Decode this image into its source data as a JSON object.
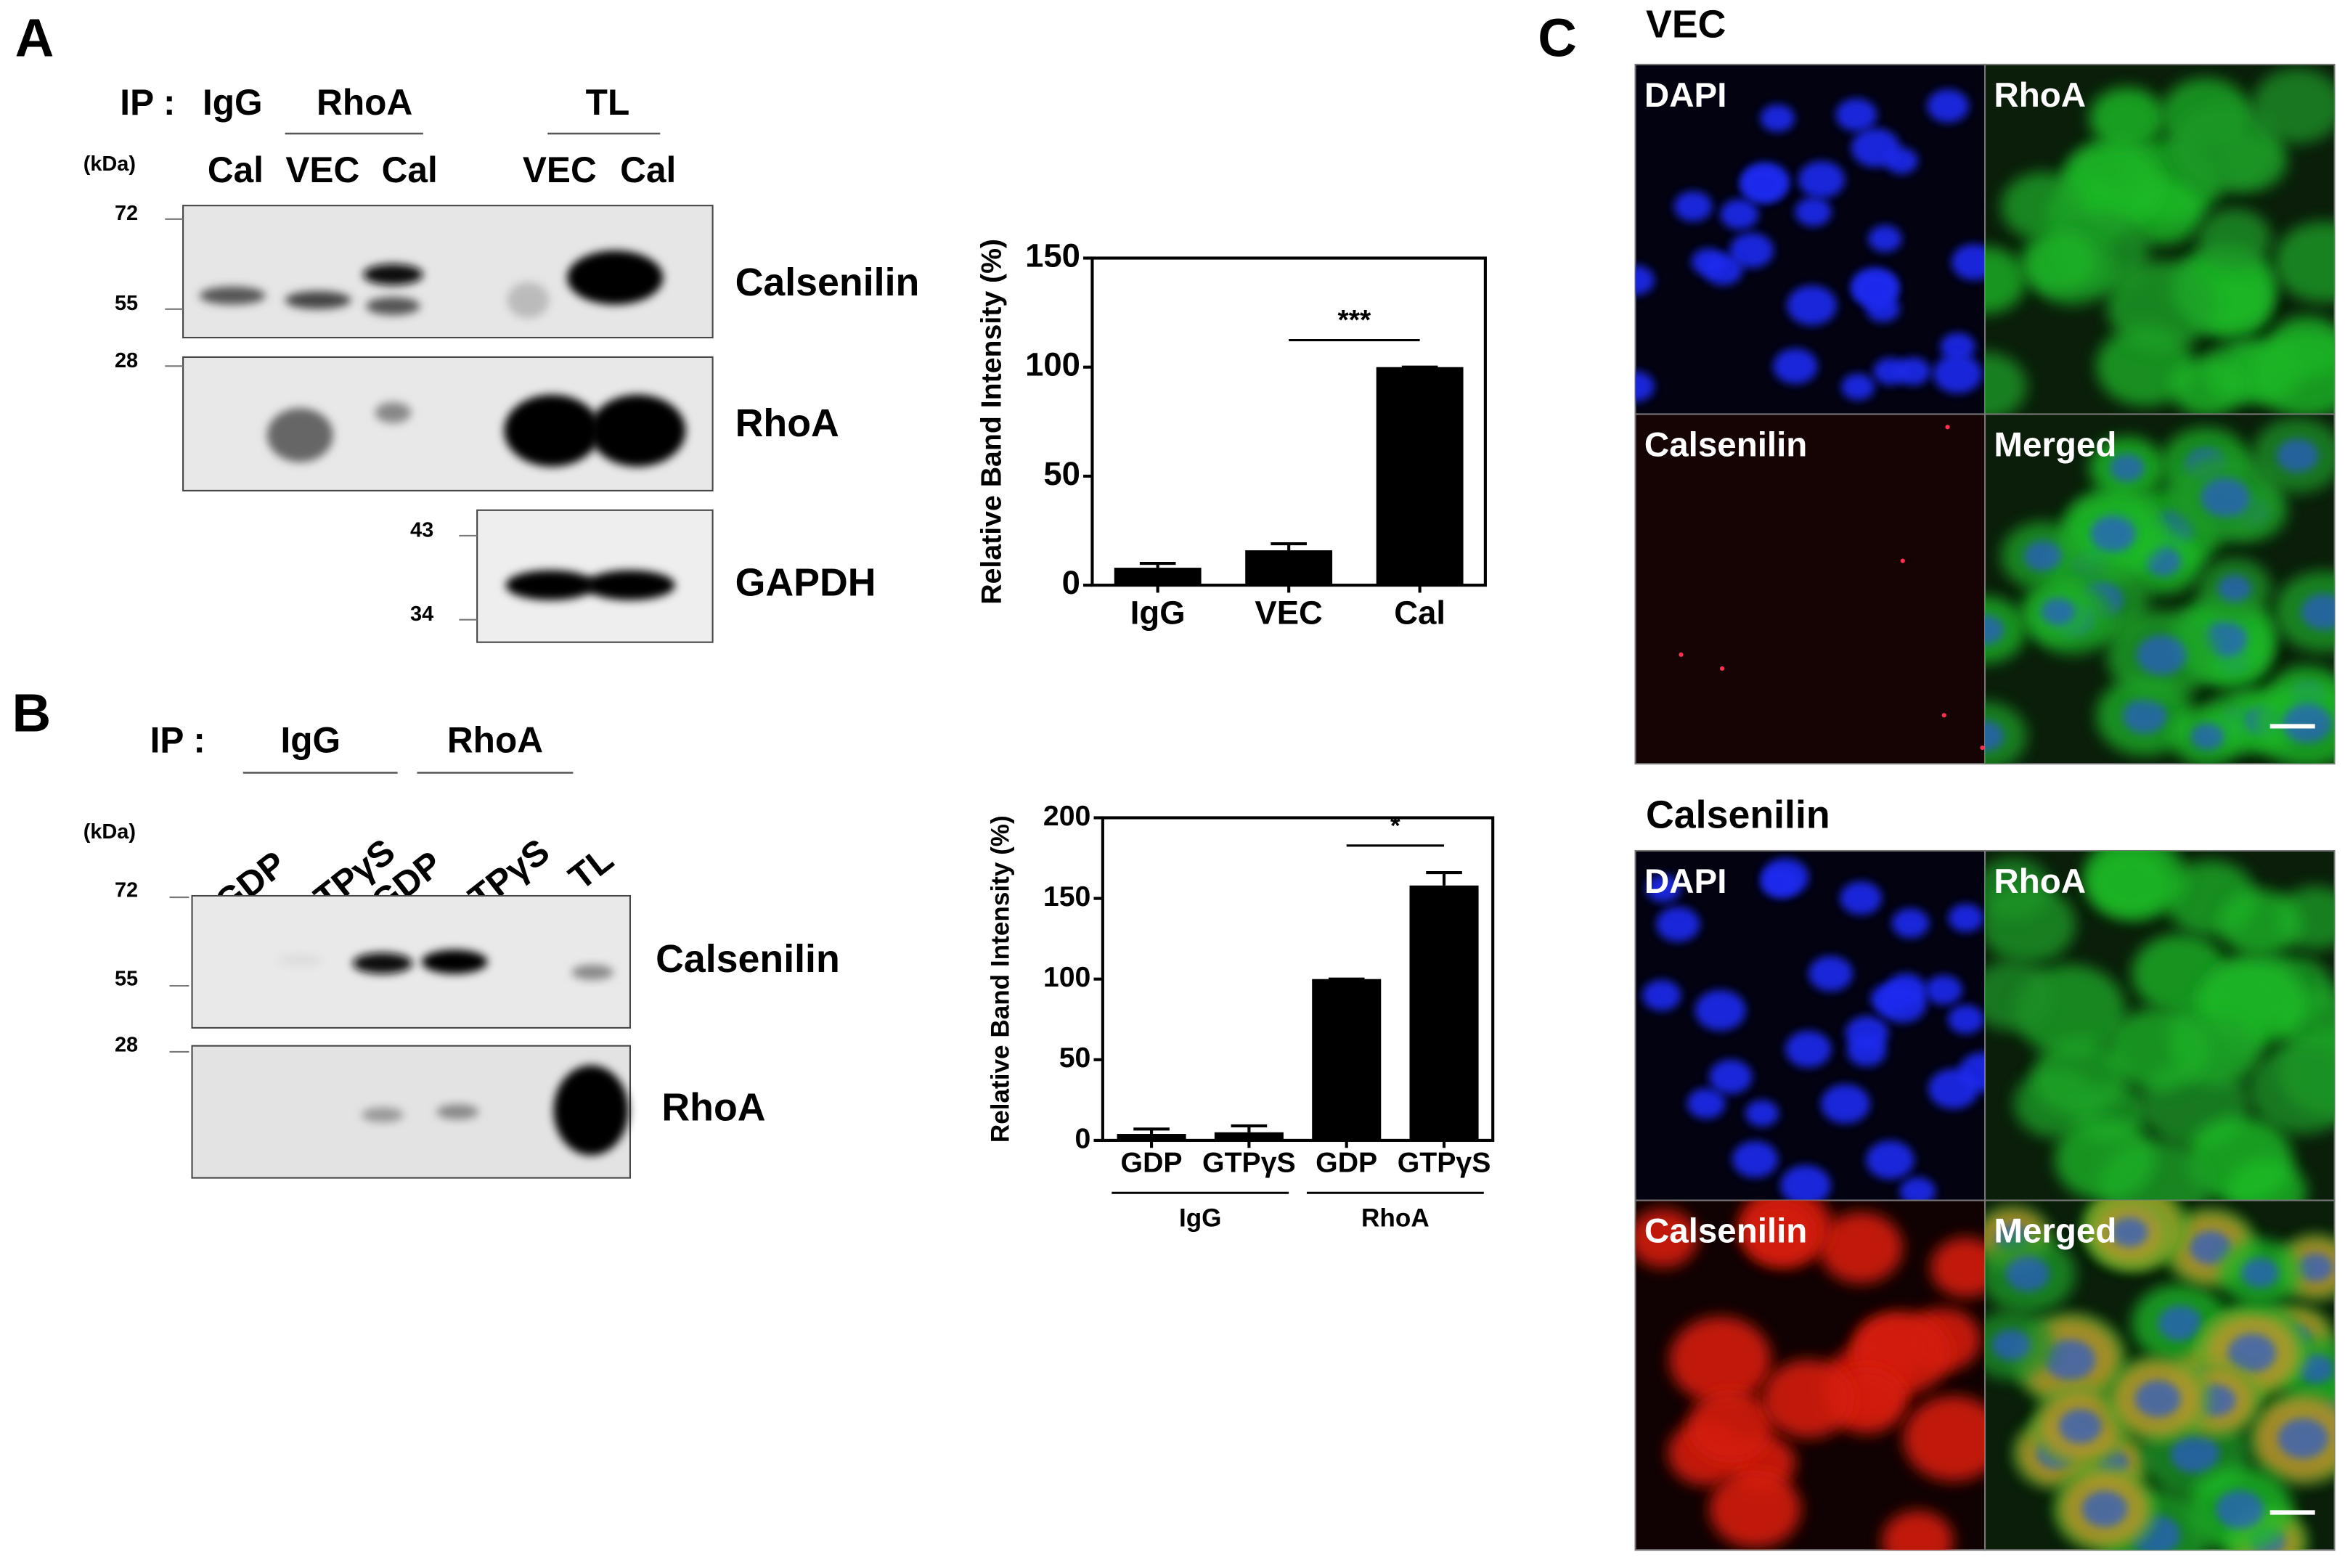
{
  "chart_data": [
    {
      "type": "bar",
      "ylabel": "Relative Band Intensity (%)",
      "categories": [
        "IgG",
        "VEC",
        "Cal"
      ],
      "values": [
        8,
        16,
        100
      ],
      "errors": [
        2,
        3,
        0
      ],
      "color": "#000000",
      "ylim": [
        0,
        150
      ],
      "yticks": [
        0,
        50,
        100,
        150
      ],
      "annotation": "***"
    },
    {
      "type": "bar",
      "ylabel": "Relative Band Intensity (%)",
      "categories": [
        "GDP",
        "GTPγS",
        "GDP",
        "GTPγS"
      ],
      "group_labels": [
        "IgG",
        "RhoA"
      ],
      "values": [
        4,
        5,
        100,
        158
      ],
      "errors": [
        3,
        4,
        0,
        8
      ],
      "color": "#000000",
      "ylim": [
        0,
        200
      ],
      "yticks": [
        0,
        50,
        100,
        150,
        200
      ],
      "annotation": "*"
    }
  ],
  "panels": {
    "A": {
      "label": "A",
      "ip_label": "IP :",
      "ip_groups": [
        "IgG",
        "RhoA",
        "TL"
      ],
      "kda_unit": "(kDa)",
      "lanes": [
        "Cal",
        "VEC",
        "Cal",
        "VEC",
        "Cal"
      ],
      "markers": [
        "72",
        "55",
        "28",
        "43",
        "34"
      ],
      "proteins": [
        "Calsenilin",
        "RhoA",
        "GAPDH"
      ]
    },
    "B": {
      "label": "B",
      "ip_label": "IP :",
      "ip_groups": [
        "IgG",
        "RhoA"
      ],
      "kda_unit": "(kDa)",
      "lanes": [
        "GDP",
        "GTPγS",
        "GDP",
        "GTPγS",
        "TL"
      ],
      "markers": [
        "72",
        "55",
        "28"
      ],
      "proteins": [
        "Calsenilin",
        "RhoA"
      ]
    },
    "C": {
      "label": "C",
      "conditions": [
        "VEC",
        "Calsenilin"
      ],
      "channels": [
        "DAPI",
        "RhoA",
        "Calsenilin",
        "Merged"
      ]
    }
  }
}
